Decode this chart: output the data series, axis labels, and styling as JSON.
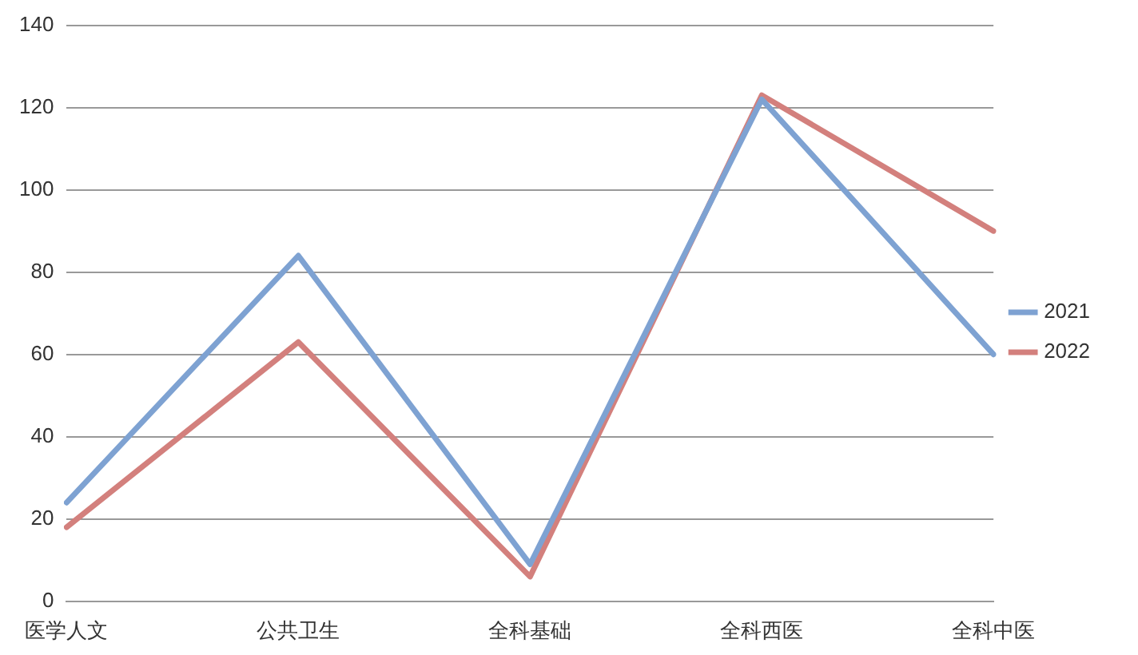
{
  "chart_data": {
    "type": "line",
    "categories": [
      "医学人文",
      "公共卫生",
      "全科基础",
      "全科西医",
      "全科中医"
    ],
    "series": [
      {
        "name": "2021",
        "color": "#7ea2d2",
        "values": [
          24,
          84,
          9,
          122,
          60
        ]
      },
      {
        "name": "2022",
        "color": "#d3807d",
        "values": [
          18,
          63,
          6,
          123,
          90
        ]
      }
    ],
    "ylim": [
      0,
      140
    ],
    "yticks": [
      0,
      20,
      40,
      60,
      80,
      100,
      120,
      140
    ],
    "grid": "y",
    "legend": "right",
    "marker": "none",
    "line_style": "solid"
  }
}
